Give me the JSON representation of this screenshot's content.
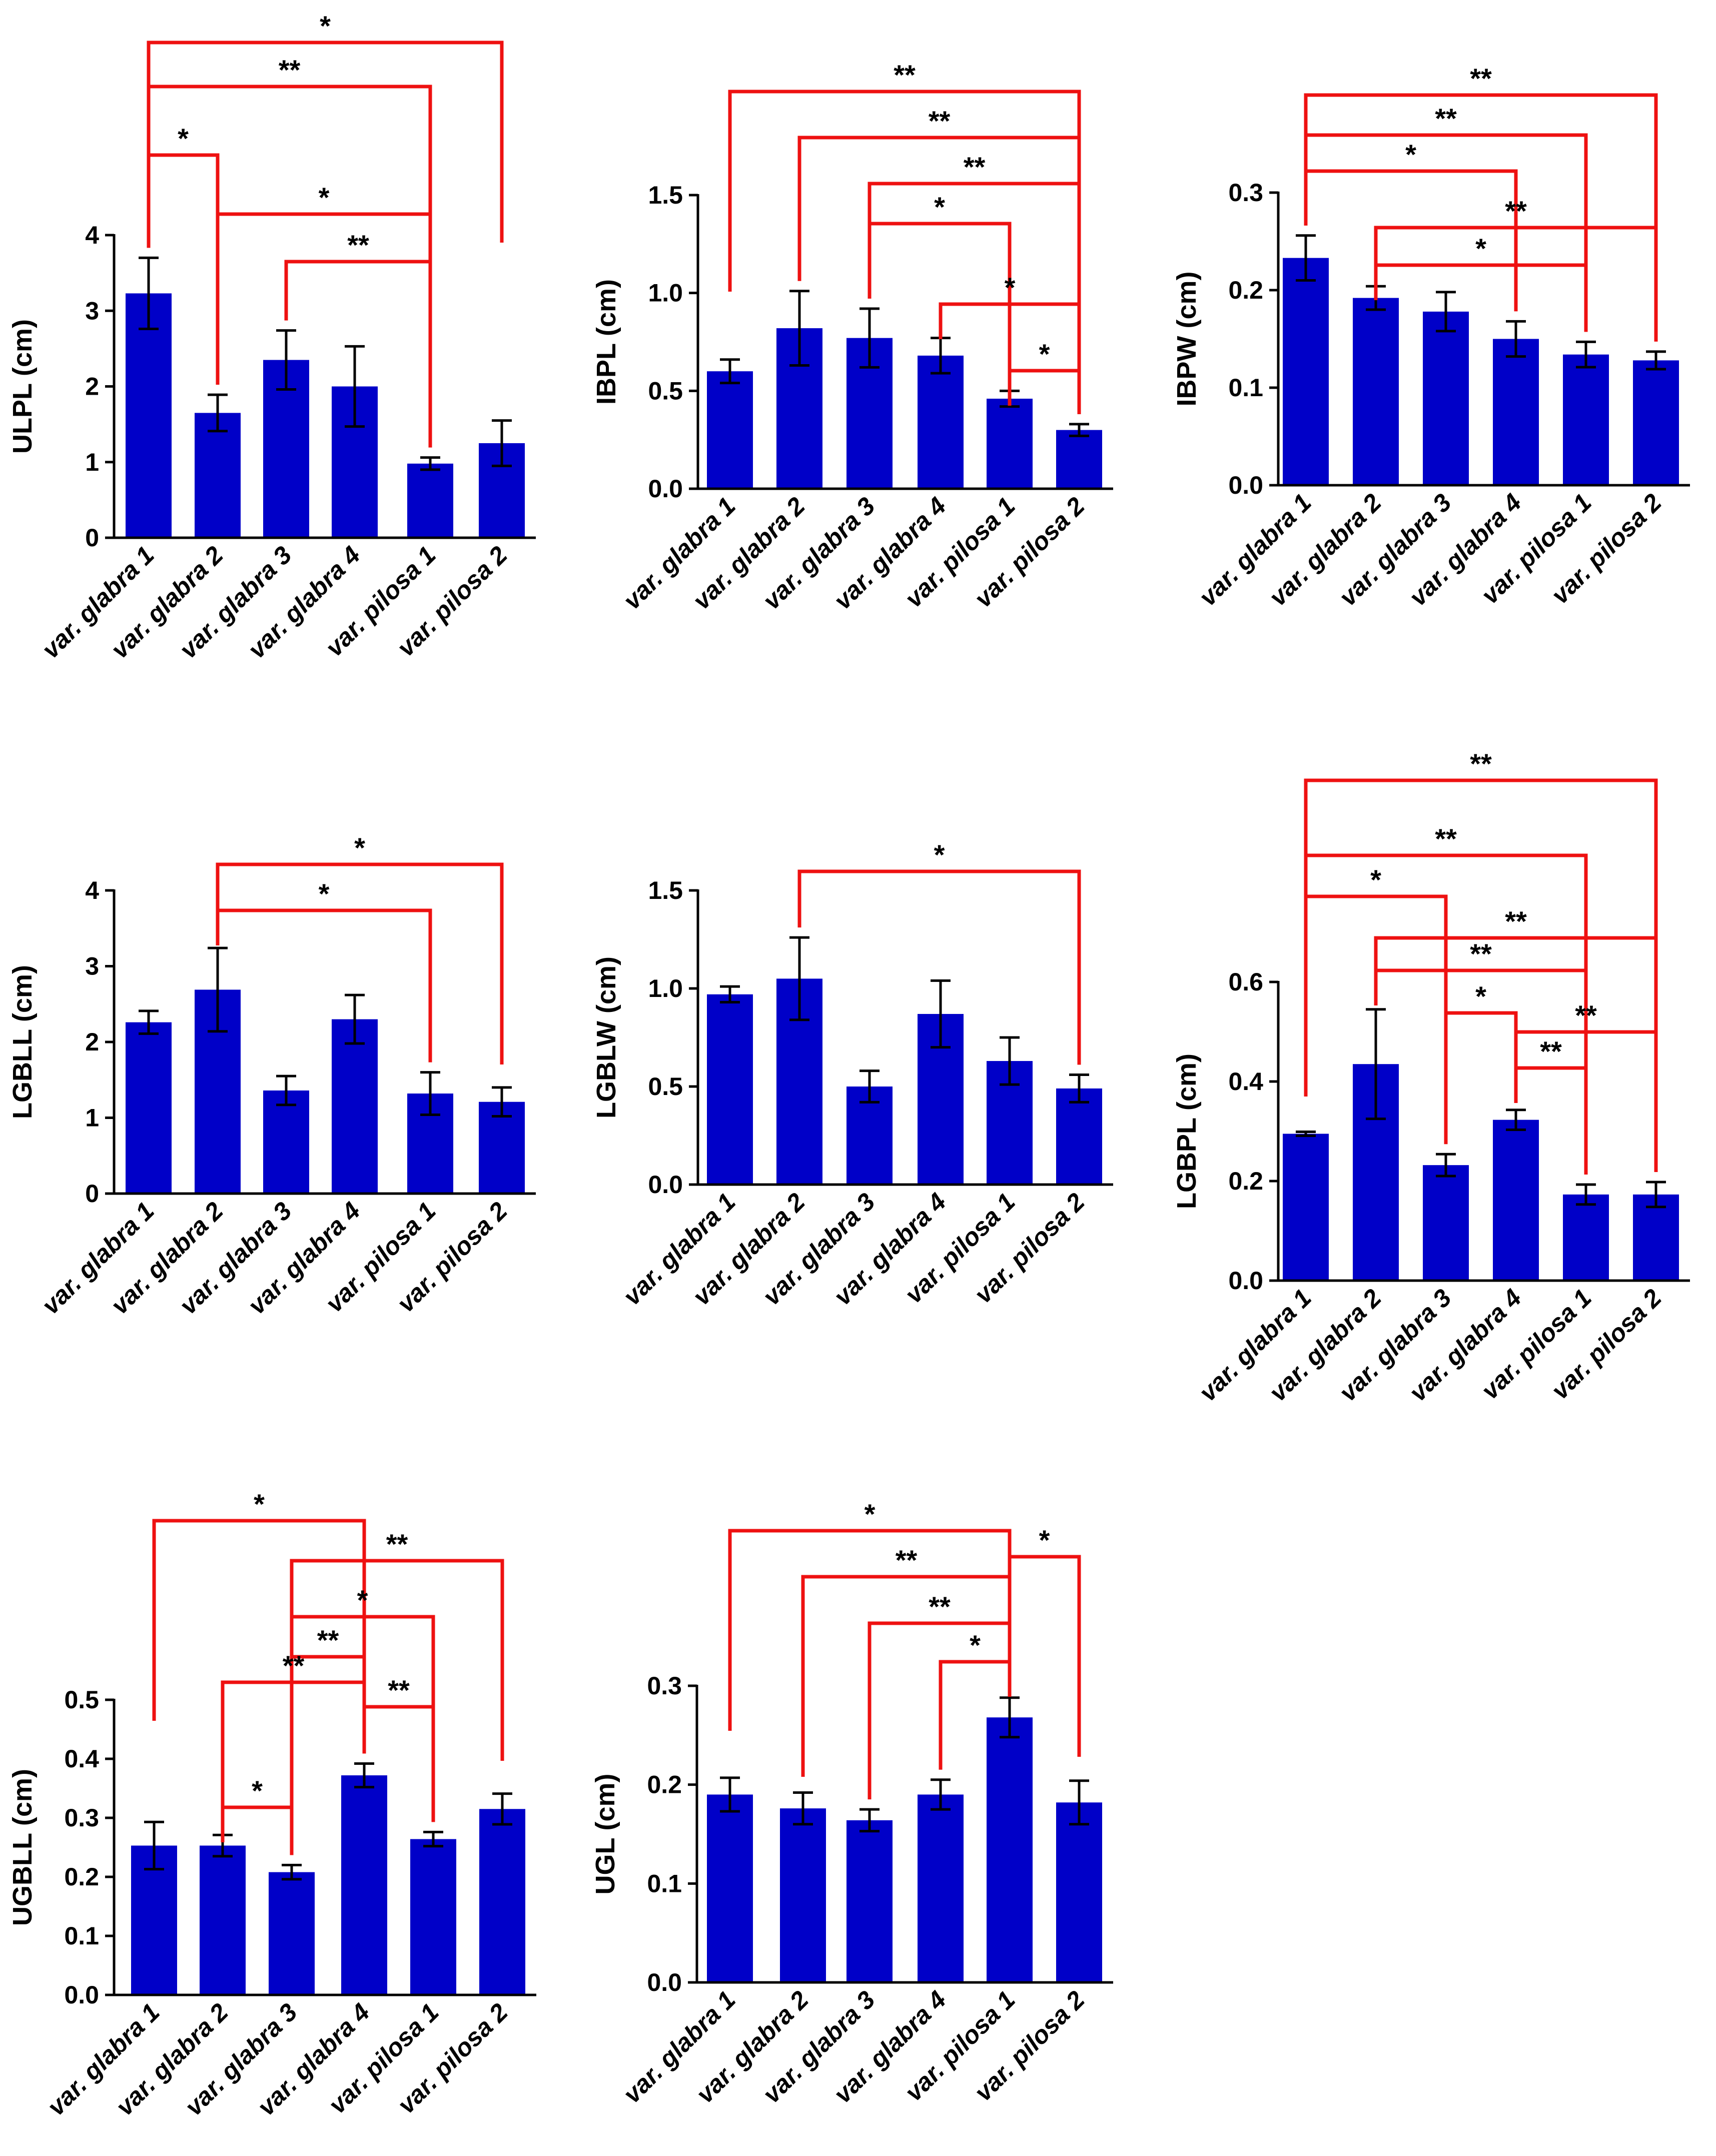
{
  "colors": {
    "bar": "#0000c8",
    "significance": "#ee1111",
    "axis": "#000000",
    "text": "#000000"
  },
  "category_prefix": "var. ",
  "chart_data": [
    {
      "type": "bar",
      "categories": [
        "glabra 1",
        "glabra 2",
        "glabra 3",
        "glabra 4",
        "pilosa 1",
        "pilosa 2"
      ],
      "values": [
        3.23,
        1.65,
        2.35,
        2.0,
        0.98,
        1.25
      ],
      "errors": [
        0.47,
        0.24,
        0.39,
        0.53,
        0.08,
        0.3
      ],
      "ylabel": "ULPL (cm)",
      "ylim": [
        0,
        4
      ],
      "yticks": [
        0,
        1,
        2,
        3,
        4
      ],
      "tick_decimals": 0,
      "significance": [
        {
          "from": 1,
          "to": 6,
          "label": "*"
        },
        {
          "from": 1,
          "to": 5,
          "label": "**"
        },
        {
          "from": 1,
          "to": 2,
          "label": "*"
        },
        {
          "from": 2,
          "to": 5,
          "label": "*"
        },
        {
          "from": 3,
          "to": 5,
          "label": "**"
        }
      ]
    },
    {
      "type": "bar",
      "categories": [
        "glabra 1",
        "glabra 2",
        "glabra 3",
        "glabra 4",
        "pilosa 1",
        "pilosa 2"
      ],
      "values": [
        0.6,
        0.82,
        0.77,
        0.68,
        0.46,
        0.3
      ],
      "errors": [
        0.06,
        0.19,
        0.15,
        0.09,
        0.04,
        0.03
      ],
      "ylabel": "IBPL (cm)",
      "ylim": [
        0,
        1.5
      ],
      "yticks": [
        0,
        0.5,
        1.0,
        1.5
      ],
      "tick_decimals": 1,
      "significance": [
        {
          "from": 1,
          "to": 6,
          "label": "**"
        },
        {
          "from": 2,
          "to": 6,
          "label": "**"
        },
        {
          "from": 3,
          "to": 6,
          "label": "**"
        },
        {
          "from": 3,
          "to": 5,
          "label": "*"
        },
        {
          "from": 4,
          "to": 6,
          "label": "*"
        },
        {
          "from": 5,
          "to": 6,
          "label": "*"
        }
      ]
    },
    {
      "type": "bar",
      "categories": [
        "glabra 1",
        "glabra 2",
        "glabra 3",
        "glabra 4",
        "pilosa 1",
        "pilosa 2"
      ],
      "values": [
        0.233,
        0.192,
        0.178,
        0.15,
        0.134,
        0.128
      ],
      "errors": [
        0.023,
        0.012,
        0.02,
        0.018,
        0.013,
        0.009
      ],
      "ylabel": "IBPW (cm)",
      "ylim": [
        0,
        0.3
      ],
      "yticks": [
        0,
        0.1,
        0.2,
        0.3
      ],
      "tick_decimals": 1,
      "significance": [
        {
          "from": 1,
          "to": 6,
          "label": "**"
        },
        {
          "from": 1,
          "to": 5,
          "label": "**"
        },
        {
          "from": 1,
          "to": 4,
          "label": "*"
        },
        {
          "from": 2,
          "to": 6,
          "label": "**"
        },
        {
          "from": 2,
          "to": 5,
          "label": "*"
        }
      ]
    },
    {
      "type": "bar",
      "categories": [
        "glabra 1",
        "glabra 2",
        "glabra 3",
        "glabra 4",
        "pilosa 1",
        "pilosa 2"
      ],
      "values": [
        2.26,
        2.69,
        1.36,
        2.3,
        1.32,
        1.21
      ],
      "errors": [
        0.15,
        0.55,
        0.19,
        0.32,
        0.28,
        0.19
      ],
      "ylabel": "LGBLL (cm)",
      "ylim": [
        0,
        4
      ],
      "yticks": [
        0,
        1,
        2,
        3,
        4
      ],
      "tick_decimals": 0,
      "significance": [
        {
          "from": 2,
          "to": 6,
          "label": "*"
        },
        {
          "from": 2,
          "to": 5,
          "label": "*"
        }
      ]
    },
    {
      "type": "bar",
      "categories": [
        "glabra 1",
        "glabra 2",
        "glabra 3",
        "glabra 4",
        "pilosa 1",
        "pilosa 2"
      ],
      "values": [
        0.97,
        1.05,
        0.5,
        0.87,
        0.63,
        0.49
      ],
      "errors": [
        0.04,
        0.21,
        0.08,
        0.17,
        0.12,
        0.07
      ],
      "ylabel": "LGBLW (cm)",
      "ylim": [
        0,
        1.5
      ],
      "yticks": [
        0,
        0.5,
        1.0,
        1.5
      ],
      "tick_decimals": 1,
      "significance": [
        {
          "from": 2,
          "to": 6,
          "label": "*"
        }
      ]
    },
    {
      "type": "bar",
      "categories": [
        "glabra 1",
        "glabra 2",
        "glabra 3",
        "glabra 4",
        "pilosa 1",
        "pilosa 2"
      ],
      "values": [
        0.295,
        0.435,
        0.232,
        0.323,
        0.173,
        0.173
      ],
      "errors": [
        0.004,
        0.11,
        0.022,
        0.02,
        0.02,
        0.025
      ],
      "ylabel": "LGBPL (cm)",
      "ylim": [
        0,
        0.6
      ],
      "yticks": [
        0,
        0.2,
        0.4,
        0.6
      ],
      "tick_decimals": 1,
      "significance": [
        {
          "from": 1,
          "to": 6,
          "label": "**"
        },
        {
          "from": 1,
          "to": 5,
          "label": "**"
        },
        {
          "from": 1,
          "to": 3,
          "label": "*"
        },
        {
          "from": 2,
          "to": 6,
          "label": "**"
        },
        {
          "from": 2,
          "to": 5,
          "label": "**"
        },
        {
          "from": 3,
          "to": 4,
          "label": "*"
        },
        {
          "from": 4,
          "to": 6,
          "label": "**"
        },
        {
          "from": 4,
          "to": 5,
          "label": "**"
        }
      ]
    },
    {
      "type": "bar",
      "categories": [
        "glabra 1",
        "glabra 2",
        "glabra 3",
        "glabra 4",
        "pilosa 1",
        "pilosa 2"
      ],
      "values": [
        0.253,
        0.253,
        0.208,
        0.372,
        0.264,
        0.315
      ],
      "errors": [
        0.04,
        0.018,
        0.012,
        0.02,
        0.012,
        0.026
      ],
      "ylabel": "UGBLL (cm)",
      "ylim": [
        0,
        0.5
      ],
      "yticks": [
        0,
        0.1,
        0.2,
        0.3,
        0.4,
        0.5
      ],
      "tick_decimals": 1,
      "significance": [
        {
          "from": 1,
          "to": 4,
          "label": "*"
        },
        {
          "from": 3,
          "to": 6,
          "label": "**"
        },
        {
          "from": 3,
          "to": 5,
          "label": "*"
        },
        {
          "from": 3,
          "to": 4,
          "label": "**"
        },
        {
          "from": 4,
          "to": 5,
          "label": "**"
        },
        {
          "from": 2,
          "to": 4,
          "label": "**"
        },
        {
          "from": 2,
          "to": 3,
          "label": "*"
        }
      ]
    },
    {
      "type": "bar",
      "categories": [
        "glabra 1",
        "glabra 2",
        "glabra 3",
        "glabra 4",
        "pilosa 1",
        "pilosa 2"
      ],
      "values": [
        0.19,
        0.176,
        0.164,
        0.19,
        0.268,
        0.182
      ],
      "errors": [
        0.017,
        0.016,
        0.011,
        0.015,
        0.02,
        0.022
      ],
      "ylabel": "UGL (cm)",
      "ylim": [
        0,
        0.3
      ],
      "yticks": [
        0,
        0.1,
        0.2,
        0.3
      ],
      "tick_decimals": 1,
      "significance": [
        {
          "from": 1,
          "to": 5,
          "label": "*"
        },
        {
          "from": 5,
          "to": 6,
          "label": "*"
        },
        {
          "from": 2,
          "to": 5,
          "label": "**"
        },
        {
          "from": 3,
          "to": 5,
          "label": "**"
        },
        {
          "from": 4,
          "to": 5,
          "label": "*"
        }
      ]
    }
  ]
}
